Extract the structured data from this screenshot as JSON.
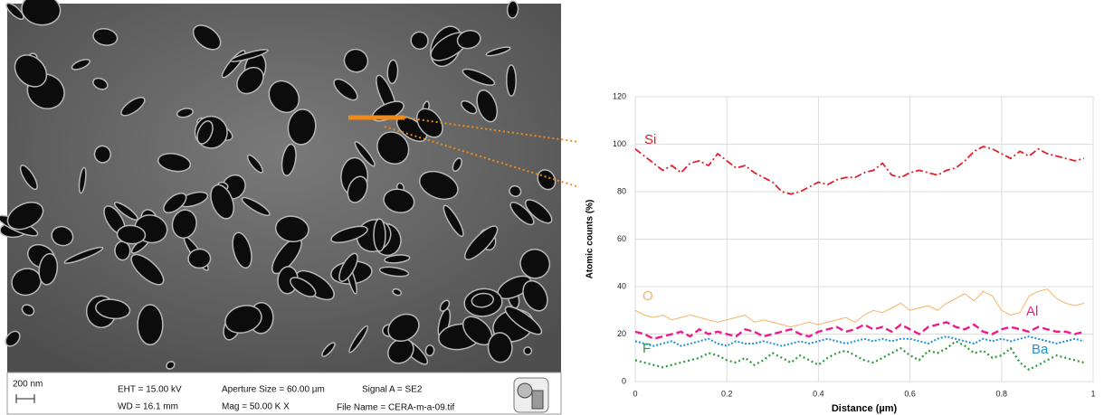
{
  "image_info": {
    "scale": "200 nm",
    "eht": "EHT = 15.00 kV",
    "wd": "WD = 16.1 mm",
    "aperture": "Aperture Size = 60.00 µm",
    "mag": "Mag =  50.00 K X",
    "signal": "Signal A = SE2",
    "file": "File Name = CERA-m-a-09.tif"
  },
  "chart_data": {
    "type": "line",
    "xlabel": "Distance (µm)",
    "ylabel": "Atomic counts (%)",
    "xlim": [
      0,
      1
    ],
    "ylim": [
      0,
      120
    ],
    "xticks": [
      0,
      0.2,
      0.4,
      0.6,
      0.8,
      1
    ],
    "yticks": [
      0,
      20,
      40,
      60,
      80,
      100,
      120
    ],
    "grid": true,
    "x": [
      0,
      0.02,
      0.04,
      0.06,
      0.08,
      0.1,
      0.12,
      0.14,
      0.16,
      0.18,
      0.2,
      0.22,
      0.24,
      0.26,
      0.28,
      0.3,
      0.32,
      0.34,
      0.36,
      0.38,
      0.4,
      0.42,
      0.44,
      0.46,
      0.48,
      0.5,
      0.52,
      0.54,
      0.56,
      0.58,
      0.6,
      0.62,
      0.64,
      0.66,
      0.68,
      0.7,
      0.72,
      0.74,
      0.76,
      0.78,
      0.8,
      0.82,
      0.84,
      0.86,
      0.88,
      0.9,
      0.92,
      0.94,
      0.96,
      0.98
    ],
    "series": [
      {
        "name": "Si",
        "color": "#e2202c",
        "values": [
          98,
          95,
          92,
          89,
          91,
          88,
          92,
          93,
          91,
          96,
          93,
          90,
          91,
          88,
          86,
          84,
          80,
          79,
          80,
          82,
          84,
          83,
          85,
          86,
          86,
          88,
          89,
          92,
          87,
          86,
          88,
          89,
          88,
          87,
          89,
          90,
          93,
          97,
          99,
          98,
          96,
          94,
          97,
          95,
          98,
          96,
          95,
          94,
          93,
          94
        ]
      },
      {
        "name": "O",
        "color": "#f4b46a",
        "values": [
          30,
          28,
          27,
          28,
          26,
          27,
          28,
          27,
          26,
          25,
          26,
          27,
          28,
          25,
          26,
          25,
          24,
          23,
          24,
          25,
          24,
          25,
          26,
          27,
          25,
          28,
          30,
          29,
          31,
          33,
          30,
          31,
          32,
          30,
          33,
          35,
          37,
          34,
          38,
          36,
          30,
          28,
          29,
          36,
          38,
          39,
          35,
          33,
          32,
          33
        ]
      },
      {
        "name": "Al",
        "color": "#ec1c8c",
        "values": [
          21,
          20,
          18,
          19,
          20,
          21,
          19,
          22,
          20,
          21,
          20,
          19,
          22,
          21,
          19,
          20,
          21,
          22,
          20,
          19,
          21,
          22,
          23,
          21,
          22,
          24,
          22,
          23,
          21,
          24,
          22,
          20,
          23,
          24,
          25,
          23,
          22,
          24,
          21,
          20,
          22,
          23,
          22,
          21,
          23,
          22,
          21,
          21,
          20,
          21
        ]
      },
      {
        "name": "F",
        "color": "#2a9a3a",
        "values": [
          9,
          8,
          7,
          6,
          7,
          8,
          9,
          10,
          12,
          11,
          9,
          8,
          10,
          7,
          9,
          12,
          10,
          8,
          11,
          9,
          7,
          10,
          12,
          13,
          11,
          9,
          8,
          10,
          12,
          14,
          11,
          9,
          13,
          12,
          14,
          17,
          15,
          12,
          13,
          10,
          11,
          14,
          8,
          5,
          7,
          9,
          11,
          10,
          9,
          8
        ]
      },
      {
        "name": "Ba",
        "color": "#1f8fd6",
        "values": [
          17,
          16,
          15,
          16,
          17,
          15,
          16,
          17,
          18,
          16,
          15,
          17,
          16,
          16,
          17,
          16,
          15,
          16,
          17,
          16,
          17,
          18,
          17,
          16,
          17,
          18,
          17,
          18,
          17,
          18,
          18,
          17,
          16,
          18,
          19,
          18,
          17,
          16,
          18,
          17,
          18,
          17,
          18,
          19,
          18,
          17,
          16,
          17,
          18,
          17
        ]
      }
    ]
  }
}
